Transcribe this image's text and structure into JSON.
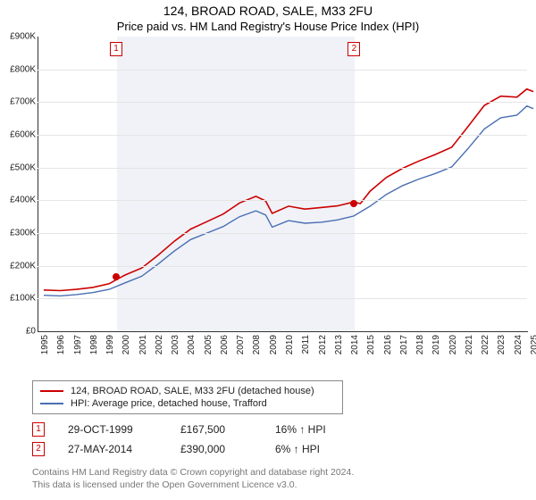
{
  "header": {
    "title": "124, BROAD ROAD, SALE, M33 2FU",
    "subtitle": "Price paid vs. HM Land Registry's House Price Index (HPI)"
  },
  "chart": {
    "type": "line",
    "background_color": "#ffffff",
    "shaded_region_color": "#f0f2f8",
    "grid_color": "#e5e5e5",
    "axis_color": "#333333",
    "tick_fontsize": 10,
    "label_color": "#222222",
    "y_axis": {
      "min": 0,
      "max": 900000,
      "tick_step": 100000,
      "prefix": "£",
      "suffix": "K",
      "divisor": 1000
    },
    "x_axis": {
      "min": 1995,
      "max": 2025,
      "tick_step": 1
    },
    "shaded_region": {
      "x_start": 1999.82,
      "x_end": 2014.4
    },
    "series": [
      {
        "name": "124, BROAD ROAD, SALE, M33 2FU (detached house)",
        "color": "#cc0000",
        "line_width": 1.6,
        "points": [
          [
            1995,
            126000
          ],
          [
            1996,
            124000
          ],
          [
            1997,
            128000
          ],
          [
            1998,
            134000
          ],
          [
            1999,
            145000
          ],
          [
            1999.82,
            167500
          ],
          [
            2000,
            172000
          ],
          [
            2001,
            193000
          ],
          [
            2002,
            232000
          ],
          [
            2003,
            275000
          ],
          [
            2004,
            312000
          ],
          [
            2005,
            335000
          ],
          [
            2006,
            358000
          ],
          [
            2007,
            392000
          ],
          [
            2008,
            412000
          ],
          [
            2008.6,
            398000
          ],
          [
            2009,
            360000
          ],
          [
            2010,
            382000
          ],
          [
            2011,
            373000
          ],
          [
            2012,
            378000
          ],
          [
            2013,
            383000
          ],
          [
            2014,
            395000
          ],
          [
            2014.4,
            390000
          ],
          [
            2015,
            428000
          ],
          [
            2016,
            470000
          ],
          [
            2017,
            498000
          ],
          [
            2018,
            520000
          ],
          [
            2019,
            540000
          ],
          [
            2020,
            562000
          ],
          [
            2021,
            625000
          ],
          [
            2022,
            690000
          ],
          [
            2023,
            718000
          ],
          [
            2024,
            715000
          ],
          [
            2024.6,
            740000
          ],
          [
            2025,
            732000
          ]
        ]
      },
      {
        "name": "HPI: Average price, detached house, Trafford",
        "color": "#4a6fb3",
        "line_width": 1.4,
        "points": [
          [
            1995,
            110000
          ],
          [
            1996,
            108000
          ],
          [
            1997,
            112000
          ],
          [
            1998,
            118000
          ],
          [
            1999,
            128000
          ],
          [
            2000,
            148000
          ],
          [
            2001,
            168000
          ],
          [
            2002,
            205000
          ],
          [
            2003,
            245000
          ],
          [
            2004,
            280000
          ],
          [
            2005,
            300000
          ],
          [
            2006,
            320000
          ],
          [
            2007,
            350000
          ],
          [
            2008,
            368000
          ],
          [
            2008.6,
            355000
          ],
          [
            2009,
            318000
          ],
          [
            2010,
            338000
          ],
          [
            2011,
            330000
          ],
          [
            2012,
            333000
          ],
          [
            2013,
            340000
          ],
          [
            2014,
            352000
          ],
          [
            2015,
            382000
          ],
          [
            2016,
            418000
          ],
          [
            2017,
            445000
          ],
          [
            2018,
            465000
          ],
          [
            2019,
            482000
          ],
          [
            2020,
            502000
          ],
          [
            2021,
            558000
          ],
          [
            2022,
            618000
          ],
          [
            2023,
            652000
          ],
          [
            2024,
            660000
          ],
          [
            2024.6,
            688000
          ],
          [
            2025,
            680000
          ]
        ]
      }
    ],
    "markers": [
      {
        "n": "1",
        "x": 1999.82,
        "y": 167500,
        "dot_color": "#cc0000"
      },
      {
        "n": "2",
        "x": 2014.4,
        "y": 390000,
        "dot_color": "#cc0000"
      }
    ],
    "marker_box": {
      "border_color": "#cc0000",
      "text_color": "#cc0000",
      "bg": "#ffffff"
    }
  },
  "legend": {
    "items": [
      {
        "color": "#cc0000",
        "label": "124, BROAD ROAD, SALE, M33 2FU (detached house)"
      },
      {
        "color": "#4a6fb3",
        "label": "HPI: Average price, detached house, Trafford"
      }
    ]
  },
  "transactions": [
    {
      "n": "1",
      "date": "29-OCT-1999",
      "price": "£167,500",
      "delta": "16% ↑ HPI"
    },
    {
      "n": "2",
      "date": "27-MAY-2014",
      "price": "£390,000",
      "delta": "6% ↑ HPI"
    }
  ],
  "footer": {
    "line1": "Contains HM Land Registry data © Crown copyright and database right 2024.",
    "line2": "This data is licensed under the Open Government Licence v3.0."
  }
}
